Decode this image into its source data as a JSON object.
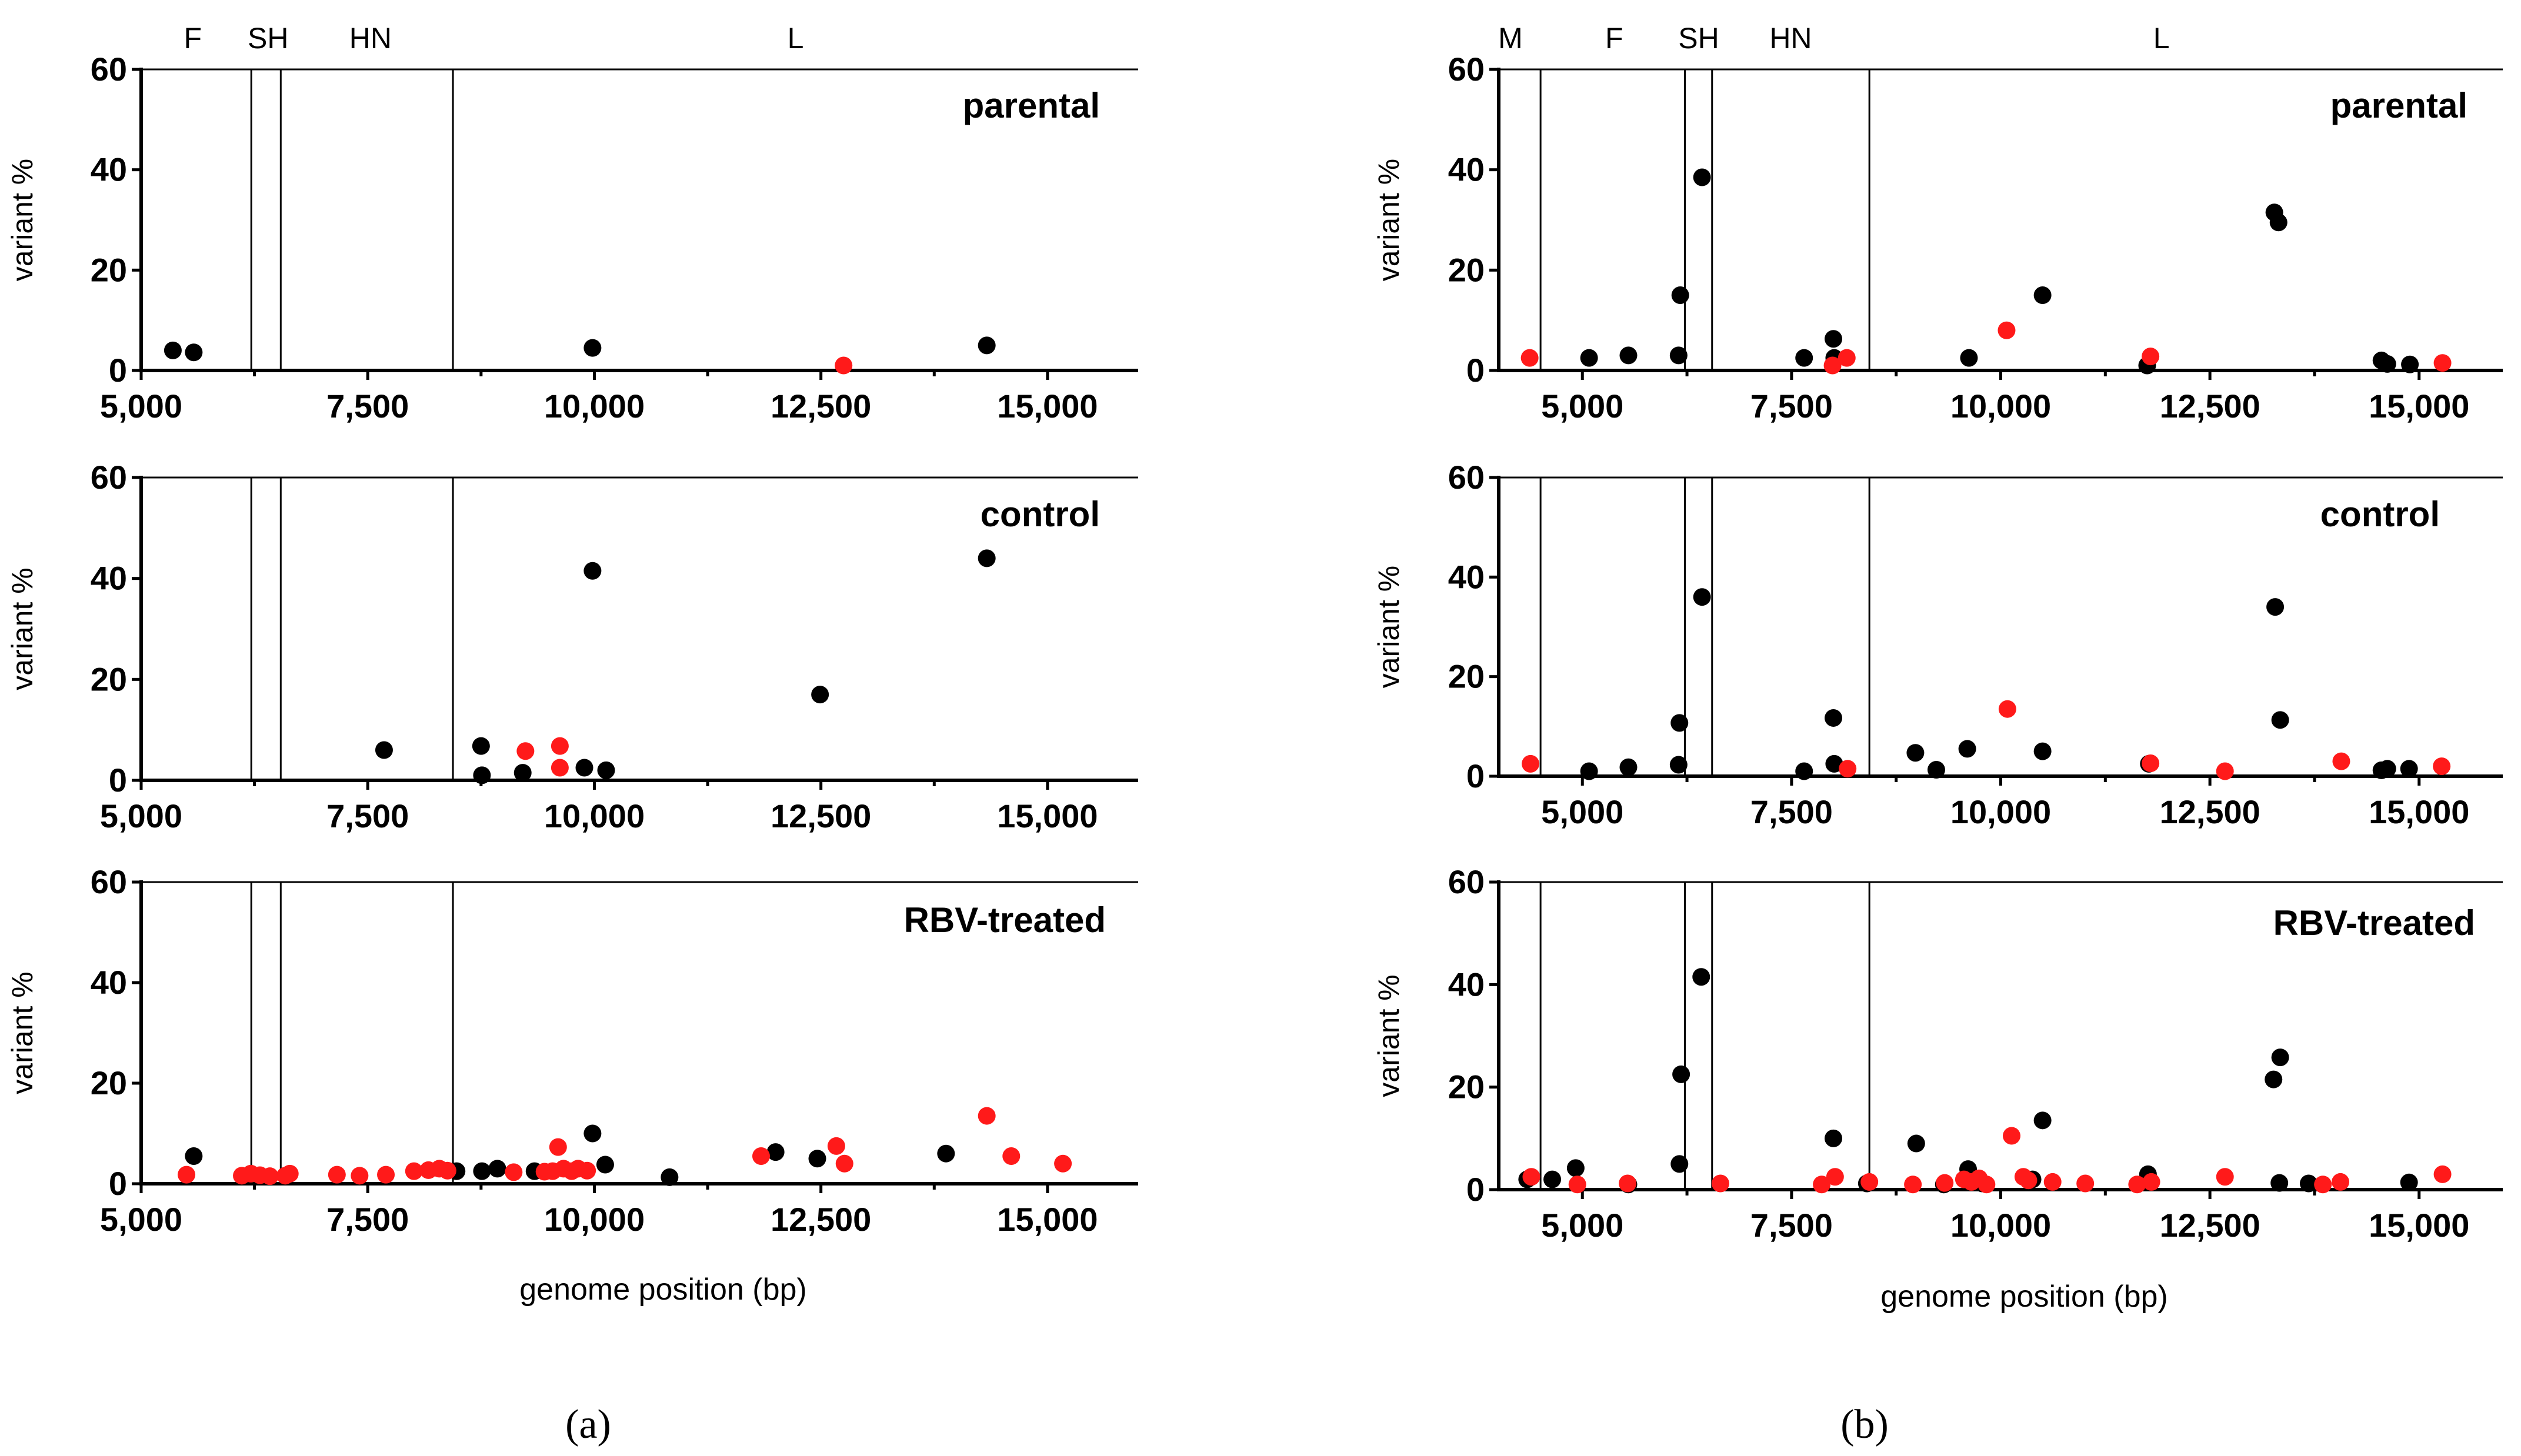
{
  "figure": {
    "left_caption": "(a)",
    "right_caption": "(b)"
  },
  "colors": {
    "black_variant": "#000000",
    "red_variant": "#ff1a1a"
  },
  "chart_data": [
    {
      "id": "a-parental",
      "type": "scatter",
      "title": "parental",
      "ylabel": "variant %",
      "xlabel": "",
      "xlim": [
        5000,
        16000
      ],
      "ylim": [
        0,
        60
      ],
      "xticks": [
        5000,
        7500,
        10000,
        12500,
        15000
      ],
      "xtick_labels": [
        "5,000",
        "7,500",
        "10,000",
        "12,500",
        "15,000"
      ],
      "yticks": [
        0,
        20,
        40,
        60
      ],
      "ytick_labels": [
        "0",
        "20",
        "40",
        "60"
      ],
      "gene_boundaries": [
        6215,
        6540,
        8440
      ],
      "gene_labels": [
        {
          "text": "F",
          "x": 5570
        },
        {
          "text": "SH",
          "x": 6400
        },
        {
          "text": "HN",
          "x": 7530
        },
        {
          "text": "L",
          "x": 12220
        }
      ],
      "series": [
        {
          "name": "black",
          "color": "#000000",
          "points": [
            [
              5350,
              4.0
            ],
            [
              5580,
              3.6
            ],
            [
              9980,
              4.5
            ],
            [
              14330,
              5.0
            ]
          ]
        },
        {
          "name": "red",
          "color": "#ff1a1a",
          "points": [
            [
              12750,
              1.0
            ]
          ]
        }
      ]
    },
    {
      "id": "a-control",
      "type": "scatter",
      "title": "control",
      "ylabel": "variant %",
      "xlabel": "",
      "xlim": [
        5000,
        16000
      ],
      "ylim": [
        0,
        60
      ],
      "xticks": [
        5000,
        7500,
        10000,
        12500,
        15000
      ],
      "xtick_labels": [
        "5,000",
        "7,500",
        "10,000",
        "12,500",
        "15,000"
      ],
      "yticks": [
        0,
        20,
        40,
        60
      ],
      "ytick_labels": [
        "0",
        "20",
        "40",
        "60"
      ],
      "gene_boundaries": [
        6215,
        6540,
        8440
      ],
      "gene_labels": [],
      "series": [
        {
          "name": "black",
          "color": "#000000",
          "points": [
            [
              7680,
              6.0
            ],
            [
              8750,
              6.8
            ],
            [
              8760,
              1.0
            ],
            [
              9210,
              1.5
            ],
            [
              9890,
              2.5
            ],
            [
              9980,
              41.5
            ],
            [
              10130,
              2.0
            ],
            [
              12490,
              17.0
            ],
            [
              14330,
              44.0
            ]
          ]
        },
        {
          "name": "red",
          "color": "#ff1a1a",
          "points": [
            [
              9240,
              5.8
            ],
            [
              9620,
              6.8
            ],
            [
              9620,
              2.5
            ]
          ]
        }
      ]
    },
    {
      "id": "a-rbv",
      "type": "scatter",
      "title": "RBV-treated",
      "ylabel": "variant %",
      "xlabel": "genome position (bp)",
      "xlim": [
        5000,
        16000
      ],
      "ylim": [
        0,
        60
      ],
      "xticks": [
        5000,
        7500,
        10000,
        12500,
        15000
      ],
      "xtick_labels": [
        "5,000",
        "7,500",
        "10,000",
        "12,500",
        "15,000"
      ],
      "yticks": [
        0,
        20,
        40,
        60
      ],
      "ytick_labels": [
        "0",
        "20",
        "40",
        "60"
      ],
      "gene_boundaries": [
        6215,
        6540,
        8440
      ],
      "gene_labels": [],
      "series": [
        {
          "name": "black",
          "color": "#000000",
          "points": [
            [
              5580,
              5.5
            ],
            [
              8480,
              2.5
            ],
            [
              8760,
              2.5
            ],
            [
              8930,
              3.0
            ],
            [
              9340,
              2.5
            ],
            [
              9980,
              10.0
            ],
            [
              10120,
              3.8
            ],
            [
              10830,
              1.3
            ],
            [
              12000,
              6.3
            ],
            [
              12460,
              5.0
            ],
            [
              13880,
              6.0
            ]
          ]
        },
        {
          "name": "red",
          "color": "#ff1a1a",
          "points": [
            [
              5500,
              1.8
            ],
            [
              6110,
              1.6
            ],
            [
              6210,
              2.0
            ],
            [
              6310,
              1.7
            ],
            [
              6420,
              1.5
            ],
            [
              6590,
              1.6
            ],
            [
              6640,
              2.0
            ],
            [
              7160,
              1.8
            ],
            [
              7410,
              1.6
            ],
            [
              7700,
              1.8
            ],
            [
              8010,
              2.5
            ],
            [
              8170,
              2.7
            ],
            [
              8290,
              3.0
            ],
            [
              8380,
              2.6
            ],
            [
              9110,
              2.3
            ],
            [
              9450,
              2.4
            ],
            [
              9540,
              2.5
            ],
            [
              9600,
              7.3
            ],
            [
              9660,
              3.0
            ],
            [
              9750,
              2.5
            ],
            [
              9820,
              3.0
            ],
            [
              9920,
              2.6
            ],
            [
              11840,
              5.5
            ],
            [
              12670,
              7.5
            ],
            [
              12760,
              4.0
            ],
            [
              14330,
              13.5
            ],
            [
              14600,
              5.5
            ],
            [
              15170,
              4.0
            ]
          ]
        }
      ]
    },
    {
      "id": "b-parental",
      "type": "scatter",
      "title": "parental",
      "ylabel": "variant %",
      "xlabel": "",
      "xlim": [
        4000,
        16000
      ],
      "ylim": [
        0,
        60
      ],
      "xticks": [
        5000,
        7500,
        10000,
        12500,
        15000
      ],
      "xtick_labels": [
        "5,000",
        "7,500",
        "10,000",
        "12,500",
        "15,000"
      ],
      "yticks": [
        0,
        20,
        40,
        60
      ],
      "ytick_labels": [
        "0",
        "20",
        "40",
        "60"
      ],
      "gene_boundaries": [
        4500,
        6225,
        6550,
        8430
      ],
      "gene_labels": [
        {
          "text": "M",
          "x": 4140
        },
        {
          "text": "F",
          "x": 5380
        },
        {
          "text": "SH",
          "x": 6390
        },
        {
          "text": "HN",
          "x": 7490
        },
        {
          "text": "L",
          "x": 11920
        }
      ],
      "series": [
        {
          "name": "black",
          "color": "#000000",
          "points": [
            [
              5080,
              2.5
            ],
            [
              5550,
              3.0
            ],
            [
              6150,
              3.0
            ],
            [
              6170,
              15.0
            ],
            [
              6430,
              38.5
            ],
            [
              7650,
              2.5
            ],
            [
              8000,
              6.3
            ],
            [
              8010,
              2.5
            ],
            [
              9620,
              2.5
            ],
            [
              10500,
              15.0
            ],
            [
              11750,
              1.0
            ],
            [
              13270,
              31.5
            ],
            [
              13320,
              29.5
            ],
            [
              14550,
              2.0
            ],
            [
              14620,
              1.3
            ],
            [
              14890,
              1.2
            ]
          ]
        },
        {
          "name": "red",
          "color": "#ff1a1a",
          "points": [
            [
              4370,
              2.5
            ],
            [
              7990,
              1.0
            ],
            [
              8160,
              2.5
            ],
            [
              10070,
              8.0
            ],
            [
              11790,
              2.8
            ],
            [
              15280,
              1.5
            ]
          ]
        }
      ]
    },
    {
      "id": "b-control",
      "type": "scatter",
      "title": "control",
      "ylabel": "variant %",
      "xlabel": "",
      "xlim": [
        4000,
        16000
      ],
      "ylim": [
        0,
        60
      ],
      "xticks": [
        5000,
        7500,
        10000,
        12500,
        15000
      ],
      "xtick_labels": [
        "5,000",
        "7,500",
        "10,000",
        "12,500",
        "15,000"
      ],
      "yticks": [
        0,
        20,
        40,
        60
      ],
      "ytick_labels": [
        "0",
        "20",
        "40",
        "60"
      ],
      "gene_boundaries": [
        4500,
        6225,
        6550,
        8430
      ],
      "gene_labels": [],
      "series": [
        {
          "name": "black",
          "color": "#000000",
          "points": [
            [
              5080,
              1.0
            ],
            [
              5550,
              1.8
            ],
            [
              6150,
              2.3
            ],
            [
              6160,
              10.7
            ],
            [
              6430,
              36.0
            ],
            [
              7650,
              1.0
            ],
            [
              8000,
              11.7
            ],
            [
              8010,
              2.5
            ],
            [
              8980,
              4.7
            ],
            [
              9230,
              1.3
            ],
            [
              9600,
              5.5
            ],
            [
              10500,
              5.0
            ],
            [
              11770,
              2.5
            ],
            [
              13280,
              34.0
            ],
            [
              13340,
              11.3
            ],
            [
              14550,
              1.2
            ],
            [
              14620,
              1.5
            ],
            [
              14880,
              1.5
            ]
          ]
        },
        {
          "name": "red",
          "color": "#ff1a1a",
          "points": [
            [
              4380,
              2.5
            ],
            [
              8170,
              1.5
            ],
            [
              10080,
              13.5
            ],
            [
              11790,
              2.6
            ],
            [
              12680,
              1.0
            ],
            [
              14070,
              3.0
            ],
            [
              15270,
              2.0
            ]
          ]
        }
      ]
    },
    {
      "id": "b-rbv",
      "type": "scatter",
      "title": "RBV-treated",
      "ylabel": "variant %",
      "xlabel": "genome position (bp)",
      "xlim": [
        4000,
        16000
      ],
      "ylim": [
        0,
        60
      ],
      "xticks": [
        5000,
        7500,
        10000,
        12500,
        15000
      ],
      "xtick_labels": [
        "5,000",
        "7,500",
        "10,000",
        "12,500",
        "15,000"
      ],
      "yticks": [
        0,
        20,
        40,
        60
      ],
      "ytick_labels": [
        "0",
        "20",
        "40",
        "60"
      ],
      "gene_boundaries": [
        4500,
        6225,
        6550,
        8430
      ],
      "gene_labels": [],
      "series": [
        {
          "name": "black",
          "color": "#000000",
          "points": [
            [
              4340,
              2.0
            ],
            [
              4640,
              2.0
            ],
            [
              4920,
              4.2
            ],
            [
              5550,
              1.0
            ],
            [
              6160,
              5.0
            ],
            [
              6180,
              22.5
            ],
            [
              6420,
              41.5
            ],
            [
              8000,
              10.0
            ],
            [
              8400,
              1.2
            ],
            [
              8990,
              9.0
            ],
            [
              9320,
              1.0
            ],
            [
              9610,
              4.0
            ],
            [
              9780,
              1.2
            ],
            [
              10380,
              2.0
            ],
            [
              10500,
              13.5
            ],
            [
              11760,
              3.0
            ],
            [
              13260,
              21.5
            ],
            [
              13330,
              1.3
            ],
            [
              13340,
              25.8
            ],
            [
              13680,
              1.2
            ],
            [
              14880,
              1.4
            ]
          ]
        },
        {
          "name": "red",
          "color": "#ff1a1a",
          "points": [
            [
              4390,
              2.5
            ],
            [
              4940,
              1.0
            ],
            [
              5540,
              1.2
            ],
            [
              6650,
              1.2
            ],
            [
              7860,
              1.0
            ],
            [
              8020,
              2.5
            ],
            [
              8430,
              1.5
            ],
            [
              8950,
              1.0
            ],
            [
              9330,
              1.3
            ],
            [
              9560,
              2.0
            ],
            [
              9650,
              1.5
            ],
            [
              9740,
              2.2
            ],
            [
              9830,
              1.0
            ],
            [
              10130,
              10.5
            ],
            [
              10270,
              2.5
            ],
            [
              10330,
              1.8
            ],
            [
              10620,
              1.5
            ],
            [
              11010,
              1.2
            ],
            [
              11630,
              1.0
            ],
            [
              11800,
              1.5
            ],
            [
              12680,
              2.5
            ],
            [
              13850,
              1.0
            ],
            [
              14060,
              1.5
            ],
            [
              15280,
              3.0
            ]
          ]
        }
      ]
    }
  ]
}
